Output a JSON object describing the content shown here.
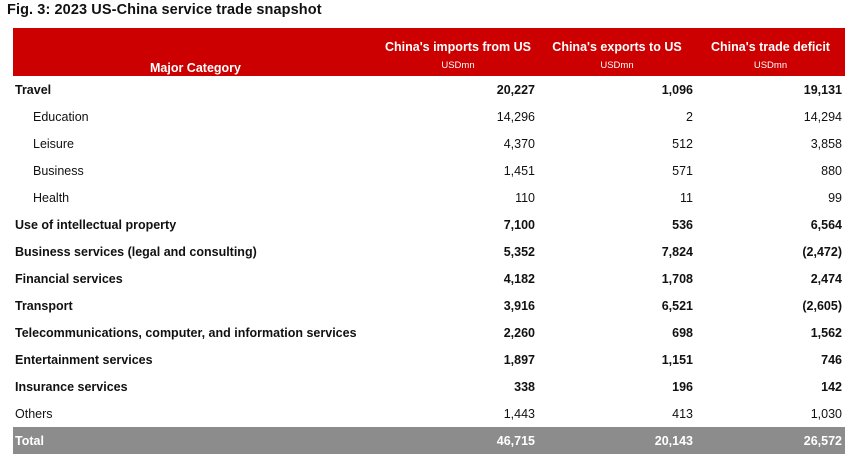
{
  "title": "Fig. 3: 2023 US-China service trade snapshot",
  "colors": {
    "header_bg": "#cc0000",
    "total_bg": "#8c8c8c"
  },
  "header": {
    "category": "Major Category",
    "columns": [
      {
        "label": "China's imports from US",
        "unit": "USDmn"
      },
      {
        "label": "China's exports to US",
        "unit": "USDmn"
      },
      {
        "label": "China's trade deficit",
        "unit": "USDmn"
      }
    ]
  },
  "rows": [
    {
      "label": "Travel",
      "imports": "20,227",
      "exports": "1,096",
      "deficit": "19,131",
      "style": "bold"
    },
    {
      "label": "Education",
      "imports": "14,296",
      "exports": "2",
      "deficit": "14,294",
      "style": "sub"
    },
    {
      "label": "Leisure",
      "imports": "4,370",
      "exports": "512",
      "deficit": "3,858",
      "style": "sub"
    },
    {
      "label": "Business",
      "imports": "1,451",
      "exports": "571",
      "deficit": "880",
      "style": "sub"
    },
    {
      "label": "Health",
      "imports": "110",
      "exports": "11",
      "deficit": "99",
      "style": "sub"
    },
    {
      "label": "Use of intellectual property",
      "imports": "7,100",
      "exports": "536",
      "deficit": "6,564",
      "style": "bold"
    },
    {
      "label": "Business services (legal and consulting)",
      "imports": "5,352",
      "exports": "7,824",
      "deficit": "(2,472)",
      "style": "bold"
    },
    {
      "label": "Financial services",
      "imports": "4,182",
      "exports": "1,708",
      "deficit": "2,474",
      "style": "bold"
    },
    {
      "label": "Transport",
      "imports": "3,916",
      "exports": "6,521",
      "deficit": "(2,605)",
      "style": "bold"
    },
    {
      "label": "Telecommunications, computer, and information services",
      "imports": "2,260",
      "exports": "698",
      "deficit": "1,562",
      "style": "bold"
    },
    {
      "label": "Entertainment services",
      "imports": "1,897",
      "exports": "1,151",
      "deficit": "746",
      "style": "bold"
    },
    {
      "label": "Insurance services",
      "imports": "338",
      "exports": "196",
      "deficit": "142",
      "style": "bold"
    },
    {
      "label": "Others",
      "imports": "1,443",
      "exports": "413",
      "deficit": "1,030",
      "style": "normal"
    }
  ],
  "total": {
    "label": "Total",
    "imports": "46,715",
    "exports": "20,143",
    "deficit": "26,572"
  }
}
